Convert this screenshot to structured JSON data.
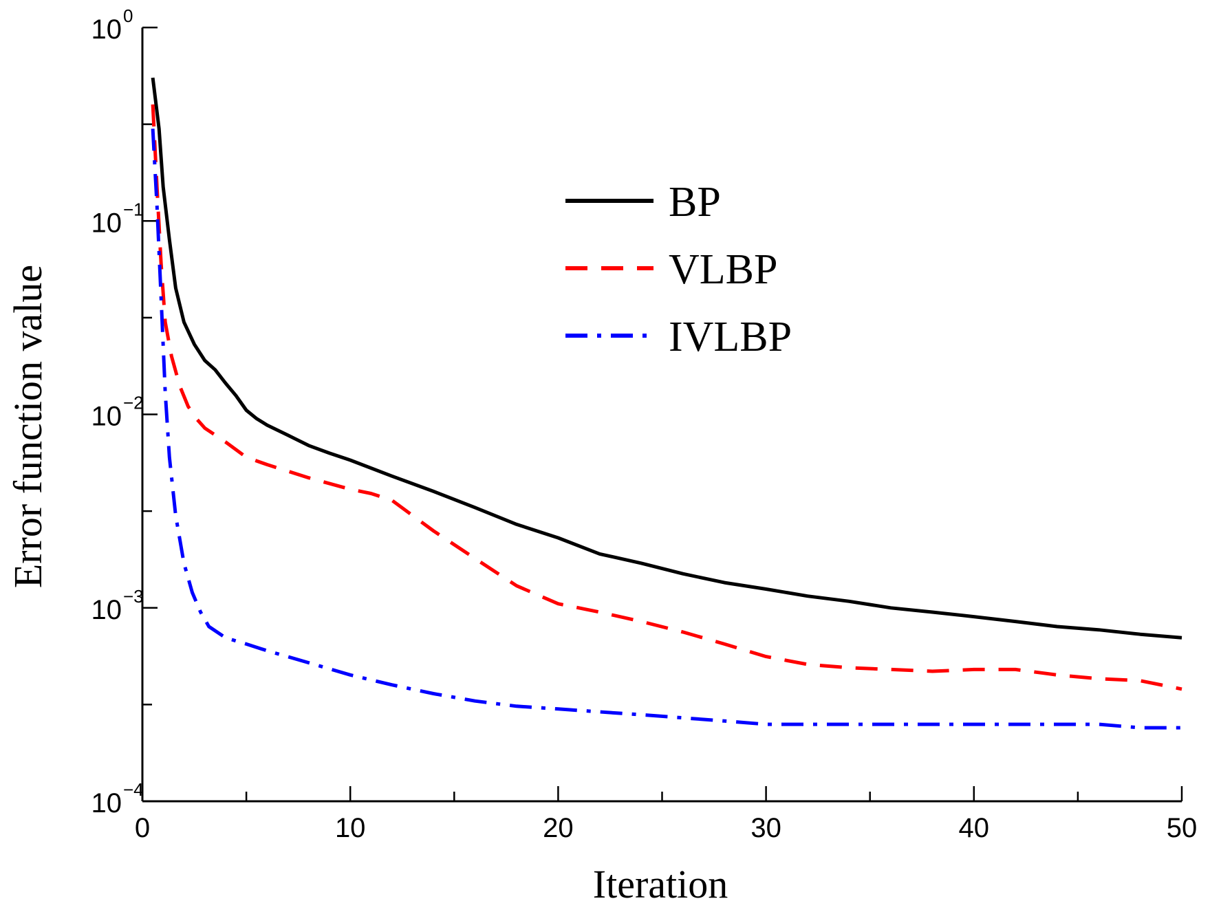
{
  "chart_data": {
    "type": "line",
    "title": "",
    "xlabel": "Iteration",
    "ylabel": "Error function value",
    "xlim": [
      0,
      50
    ],
    "ylim": [
      0.0001,
      1
    ],
    "yscale": "log",
    "x_ticks": [
      0,
      10,
      20,
      30,
      40,
      50
    ],
    "y_ticks": [
      {
        "value": 1,
        "base": "10",
        "exp": "0"
      },
      {
        "value": 0.1,
        "base": "10",
        "exp": "−1"
      },
      {
        "value": 0.01,
        "base": "10",
        "exp": "−2"
      },
      {
        "value": 0.001,
        "base": "10",
        "exp": "−3"
      },
      {
        "value": 0.0001,
        "base": "10",
        "exp": "−4"
      }
    ],
    "grid": false,
    "legend_position": "top-right",
    "series": [
      {
        "name": "BP",
        "color": "#000000",
        "style": "solid",
        "x": [
          0.5,
          0.8,
          1.0,
          1.3,
          1.6,
          2.0,
          2.5,
          3.0,
          3.5,
          4.0,
          4.5,
          5.0,
          5.5,
          6,
          7,
          8,
          9,
          10,
          12,
          14,
          16,
          18,
          20,
          22,
          24,
          26,
          28,
          30,
          32,
          34,
          36,
          38,
          40,
          42,
          44,
          46,
          48,
          50
        ],
        "y": [
          0.55,
          0.3,
          0.15,
          0.08,
          0.045,
          0.03,
          0.023,
          0.019,
          0.017,
          0.0145,
          0.0125,
          0.0105,
          0.0095,
          0.0088,
          0.0078,
          0.0069,
          0.0063,
          0.0058,
          0.0048,
          0.004,
          0.0033,
          0.0027,
          0.0023,
          0.0019,
          0.0017,
          0.0015,
          0.00135,
          0.00125,
          0.00115,
          0.00108,
          0.001,
          0.00095,
          0.0009,
          0.00085,
          0.0008,
          0.00077,
          0.00073,
          0.0007
        ]
      },
      {
        "name": "VLBP",
        "color": "#ff0000",
        "style": "dashed",
        "x": [
          0.5,
          0.7,
          0.9,
          1.1,
          1.4,
          1.8,
          2.2,
          2.6,
          3.0,
          4,
          5,
          6,
          8,
          10,
          11,
          12,
          14,
          16,
          18,
          20,
          22,
          24,
          26,
          28,
          30,
          32,
          34,
          36,
          38,
          40,
          42,
          44,
          46,
          48,
          50
        ],
        "y": [
          0.4,
          0.15,
          0.06,
          0.03,
          0.02,
          0.014,
          0.011,
          0.0095,
          0.0085,
          0.0072,
          0.006,
          0.0055,
          0.0047,
          0.0041,
          0.0039,
          0.0036,
          0.0025,
          0.0018,
          0.0013,
          0.00105,
          0.00095,
          0.00085,
          0.00075,
          0.00065,
          0.00056,
          0.00051,
          0.00049,
          0.00048,
          0.00047,
          0.00048,
          0.00048,
          0.00045,
          0.00043,
          0.00042,
          0.00038
        ]
      },
      {
        "name": "IVLBP",
        "color": "#0000ff",
        "style": "dashdot",
        "x": [
          0.5,
          0.7,
          0.9,
          1.1,
          1.3,
          1.6,
          2.0,
          2.4,
          2.8,
          3.2,
          4,
          5,
          6,
          8,
          10,
          12,
          14,
          16,
          18,
          20,
          22,
          24,
          26,
          28,
          30,
          32,
          34,
          36,
          38,
          40,
          42,
          44,
          46,
          48,
          50
        ],
        "y": [
          0.3,
          0.12,
          0.04,
          0.013,
          0.006,
          0.003,
          0.0017,
          0.0012,
          0.00095,
          0.0008,
          0.0007,
          0.00065,
          0.0006,
          0.00052,
          0.00045,
          0.0004,
          0.00036,
          0.00033,
          0.00031,
          0.0003,
          0.00029,
          0.00028,
          0.00027,
          0.00026,
          0.00025,
          0.00025,
          0.00025,
          0.00025,
          0.00025,
          0.00025,
          0.00025,
          0.00025,
          0.00025,
          0.00024,
          0.00024
        ]
      }
    ]
  }
}
